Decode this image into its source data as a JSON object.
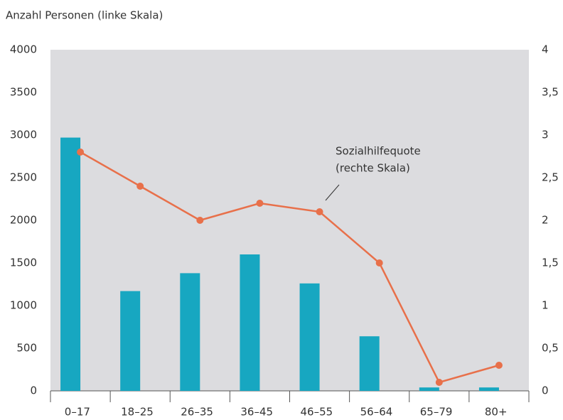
{
  "chart_data": {
    "type": "bar_line",
    "y_axis_label": "Anzahl Personen (linke Skala)",
    "annotation": [
      "Sozialhilfequote",
      "(rechte Skala)"
    ],
    "categories": [
      "0–17",
      "18–25",
      "26–35",
      "36–45",
      "46–55",
      "56–64",
      "65–79",
      "80+"
    ],
    "series": [
      {
        "type": "bar",
        "color": "#17a7c1",
        "values": [
          2970,
          1170,
          1380,
          1600,
          1260,
          640,
          40,
          40
        ]
      },
      {
        "type": "line",
        "axis": "y2",
        "color": "#e8704a",
        "values": [
          2.8,
          2.4,
          2.0,
          2.2,
          2.1,
          1.5,
          0.1,
          0.3
        ]
      }
    ],
    "ylim": [
      0,
      4000
    ],
    "yticks": [
      0,
      500,
      1000,
      1500,
      2000,
      2500,
      3000,
      3500,
      4000
    ],
    "y2lim": [
      0,
      4
    ],
    "y2ticks": [
      0,
      {
        "value": 0.5,
        "label": "0,5"
      },
      1,
      {
        "value": 1.5,
        "label": "1,5"
      },
      2,
      {
        "value": 2.5,
        "label": "2,5"
      },
      3,
      {
        "value": 3.5,
        "label": "3,5"
      },
      4
    ],
    "background": "#dcdcdf"
  }
}
